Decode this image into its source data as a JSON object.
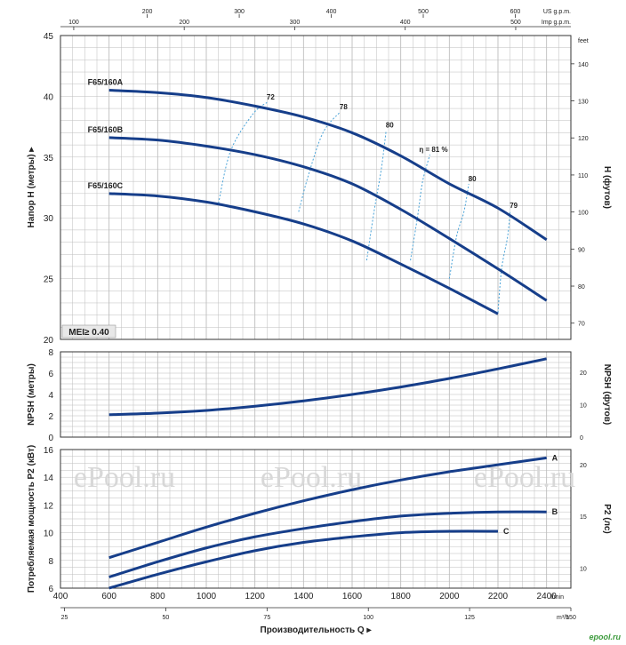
{
  "chart_data": [
    {
      "type": "line",
      "panel": "head",
      "ylabel": "Напор H (метры) ▸",
      "ylabel2": "H (футов)",
      "ylim": [
        20,
        45
      ],
      "yticks": [
        20,
        25,
        30,
        35,
        40,
        45
      ],
      "ylim2": [
        65.6,
        147.6
      ],
      "yticks2": [
        70,
        80,
        90,
        100,
        110,
        120,
        130,
        140
      ],
      "y2unit": "feet",
      "badge": "MEI≥ 0.40",
      "series": [
        {
          "name": "F65/160A",
          "x": [
            600,
            800,
            1000,
            1200,
            1400,
            1600,
            1800,
            2000,
            2200,
            2400
          ],
          "y": [
            40.5,
            40.3,
            39.9,
            39.2,
            38.3,
            37.0,
            35.1,
            32.8,
            30.8,
            28.2
          ]
        },
        {
          "name": "F65/160B",
          "x": [
            600,
            800,
            1000,
            1200,
            1400,
            1600,
            1800,
            2000,
            2200,
            2400
          ],
          "y": [
            36.6,
            36.4,
            35.9,
            35.2,
            34.2,
            32.8,
            30.7,
            28.3,
            25.8,
            23.2
          ]
        },
        {
          "name": "F65/160C",
          "x": [
            600,
            800,
            1000,
            1200,
            1400,
            1600,
            1800,
            2000,
            2200
          ],
          "y": [
            32.0,
            31.8,
            31.3,
            30.5,
            29.5,
            28.1,
            26.2,
            24.2,
            22.1
          ]
        }
      ],
      "efficiency": [
        {
          "label": "72",
          "x": [
            1050,
            1100,
            1190,
            1250
          ],
          "y": [
            31.2,
            35.5,
            38.5,
            39.5
          ]
        },
        {
          "label": "78",
          "x": [
            1380,
            1420,
            1480,
            1550
          ],
          "y": [
            30.5,
            33.5,
            37.0,
            38.7
          ]
        },
        {
          "label": "80",
          "x": [
            1660,
            1690,
            1720,
            1740
          ],
          "y": [
            26.5,
            30.5,
            34.0,
            37.2
          ]
        },
        {
          "label": "η = 81 %",
          "x": [
            1840,
            1870,
            1890,
            1920
          ],
          "y": [
            26.5,
            30.2,
            33.0,
            35.2
          ]
        },
        {
          "label": "80",
          "x": [
            2000,
            2030,
            2060,
            2080
          ],
          "y": [
            25.0,
            28.5,
            30.5,
            32.8
          ]
        },
        {
          "label": "79",
          "x": [
            2200,
            2215,
            2240,
            2250
          ],
          "y": [
            22.2,
            25.8,
            28.5,
            30.6
          ]
        }
      ]
    },
    {
      "type": "line",
      "panel": "npsh",
      "ylabel": "NPSH (метры)",
      "ylabel2": "NPSH (футов)",
      "ylim": [
        0,
        8
      ],
      "yticks": [
        0,
        2,
        4,
        6,
        8
      ],
      "yticks2": [
        0,
        10,
        20
      ],
      "series": [
        {
          "name": "NPSH",
          "x": [
            600,
            800,
            1000,
            1200,
            1400,
            1600,
            1800,
            2000,
            2200,
            2400
          ],
          "y": [
            2.1,
            2.25,
            2.5,
            2.9,
            3.4,
            4.0,
            4.7,
            5.5,
            6.4,
            7.35
          ]
        }
      ]
    },
    {
      "type": "line",
      "panel": "power",
      "ylabel": "Потребляемая мощность P2 (кВт)",
      "ylabel2": "P2 (лс)",
      "ylim": [
        6,
        16
      ],
      "yticks": [
        6,
        8,
        10,
        12,
        14,
        16
      ],
      "yticks2": [
        10,
        15,
        20
      ],
      "series": [
        {
          "name": "A",
          "x": [
            600,
            800,
            1000,
            1200,
            1400,
            1600,
            1800,
            2000,
            2200,
            2400
          ],
          "y": [
            8.2,
            9.3,
            10.4,
            11.4,
            12.3,
            13.1,
            13.8,
            14.4,
            14.9,
            15.4
          ]
        },
        {
          "name": "B",
          "x": [
            600,
            800,
            1000,
            1200,
            1400,
            1600,
            1800,
            2000,
            2200,
            2400
          ],
          "y": [
            6.8,
            7.9,
            8.9,
            9.7,
            10.3,
            10.8,
            11.2,
            11.4,
            11.5,
            11.5
          ]
        },
        {
          "name": "C",
          "x": [
            600,
            800,
            1000,
            1200,
            1400,
            1600,
            1800,
            2000,
            2200
          ],
          "y": [
            6.0,
            7.0,
            7.9,
            8.7,
            9.3,
            9.7,
            10.0,
            10.1,
            10.1
          ]
        }
      ],
      "watermark": [
        "ePool.ru",
        "ePool.ru",
        "ePool.ru"
      ]
    }
  ],
  "x_axis": {
    "main_unit": "l/min",
    "main_ticks": [
      400,
      600,
      800,
      1000,
      1200,
      1400,
      1600,
      1800,
      2000,
      2200,
      2400
    ],
    "m3h_unit": "m³/h",
    "m3h_ticks": [
      25,
      50,
      75,
      100,
      125,
      150
    ],
    "us_unit": "US g.p.m.",
    "us_ticks": [
      200,
      300,
      400,
      500,
      600
    ],
    "imp_unit": "Imp g.p.m.",
    "imp_ticks": [
      100,
      200,
      300,
      400,
      500
    ],
    "title": "Производительность Q ▸"
  },
  "brand": "epool.ru",
  "colors": {
    "curve": "#163e8a",
    "grid": "#bdbdbd",
    "eff": "#4aa3d8"
  }
}
